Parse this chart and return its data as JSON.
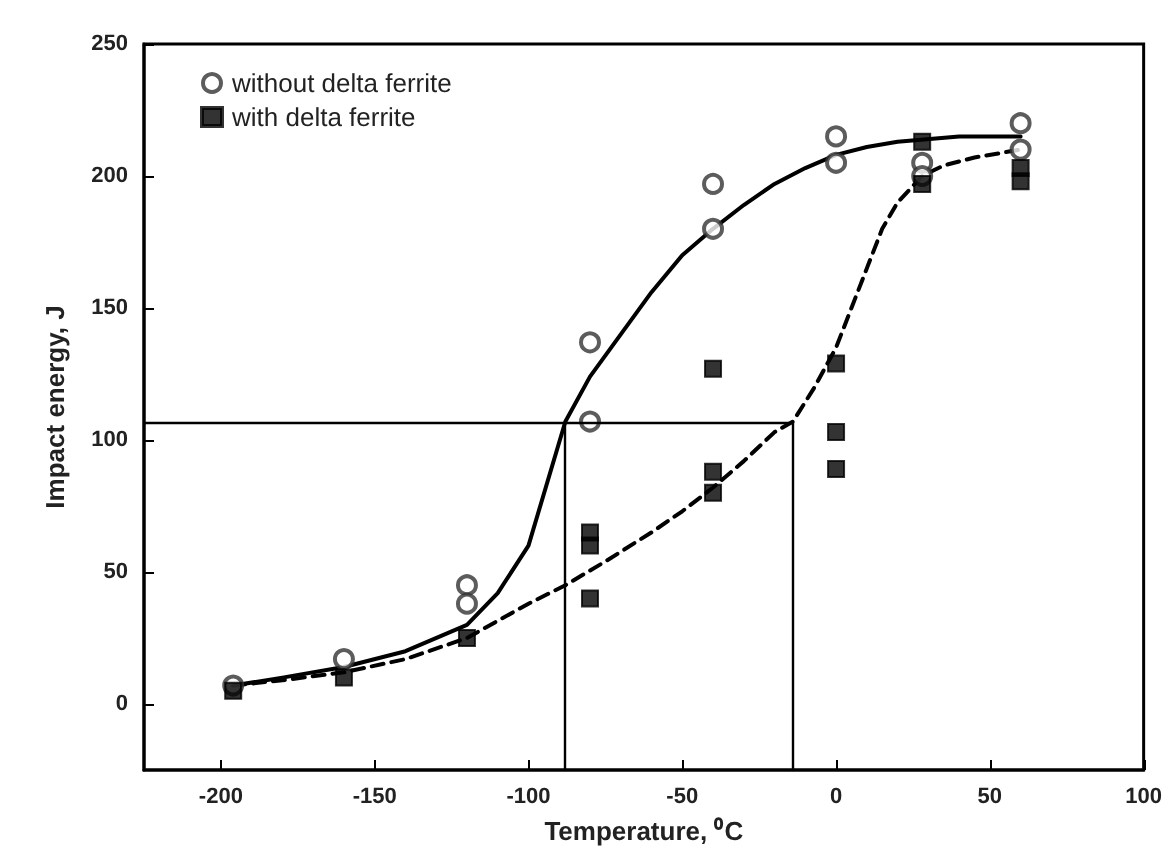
{
  "chart_data": {
    "type": "scatter",
    "xlabel": "Temperature, ⁰C",
    "ylabel": "Impact energy, J",
    "xlim": [
      -225,
      100
    ],
    "xticks": [
      -200,
      -150,
      -100,
      -50,
      0,
      50,
      100
    ],
    "ylim": [
      -25,
      250
    ],
    "yticks": [
      0,
      50,
      100,
      150,
      200,
      250
    ],
    "grid": false,
    "legend": "top left",
    "series": [
      {
        "name": "without delta ferrite",
        "color": "#333333",
        "marker": "circle",
        "x": [
          -196,
          -160,
          -120,
          -120,
          -80,
          -80,
          -40,
          -40,
          0,
          0,
          28,
          28,
          60,
          60
        ],
        "values": [
          7,
          17,
          45,
          38,
          137,
          107,
          197,
          180,
          215,
          205,
          205,
          200,
          220,
          210
        ]
      },
      {
        "name": "with delta ferrite",
        "color": "#000000",
        "marker": "square",
        "x": [
          -196,
          -160,
          -120,
          -80,
          -80,
          -80,
          -40,
          -40,
          -40,
          0,
          0,
          0,
          28,
          28,
          60,
          60
        ],
        "values": [
          5,
          10,
          25,
          65,
          60,
          40,
          127,
          88,
          80,
          129,
          103,
          89,
          213,
          197,
          203,
          198
        ]
      },
      {
        "type": "line",
        "color": "#000000",
        "line_style": "solid",
        "x": [
          -196,
          -180,
          -160,
          -140,
          -120,
          -110,
          -100,
          -88,
          -80,
          -70,
          -60,
          -50,
          -40,
          -30,
          -20,
          -10,
          0,
          10,
          20,
          40,
          60
        ],
        "values": [
          7,
          10,
          14,
          20,
          30,
          42,
          60,
          107,
          124,
          140,
          156,
          170,
          180,
          189,
          197,
          203,
          208,
          211,
          213,
          215,
          215
        ]
      },
      {
        "type": "line",
        "color": "#000000",
        "line_style": "dashed",
        "x": [
          -196,
          -180,
          -160,
          -140,
          -120,
          -100,
          -88,
          -75,
          -60,
          -50,
          -40,
          -30,
          -20,
          -14,
          -7,
          0,
          5,
          10,
          15,
          20,
          28,
          35,
          45,
          60
        ],
        "values": [
          7,
          9,
          12,
          17,
          25,
          38,
          45,
          54,
          65,
          73,
          82,
          92,
          103,
          107,
          120,
          135,
          150,
          165,
          180,
          190,
          200,
          204,
          207,
          210
        ]
      }
    ],
    "ref_lines": [
      {
        "axis": "y",
        "value": 107
      },
      {
        "axis": "x",
        "value": -88
      },
      {
        "axis": "x",
        "value": -14
      }
    ]
  }
}
